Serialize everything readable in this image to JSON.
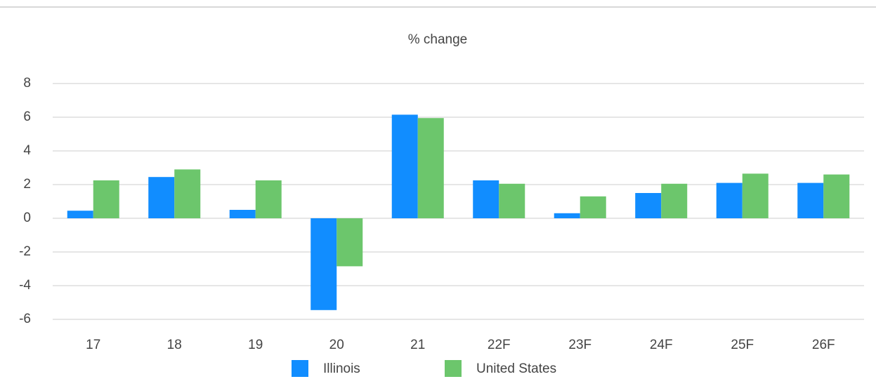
{
  "chart_data": {
    "type": "bar",
    "title": "% change",
    "categories": [
      "17",
      "18",
      "19",
      "20",
      "21",
      "22F",
      "23F",
      "24F",
      "25F",
      "26F"
    ],
    "series": [
      {
        "name": "Illinois",
        "color": "#118dff",
        "values": [
          0.45,
          2.45,
          0.5,
          -5.45,
          6.15,
          2.25,
          0.3,
          1.5,
          2.1,
          2.1
        ]
      },
      {
        "name": "United States",
        "color": "#6cc66c",
        "values": [
          2.25,
          2.9,
          2.25,
          -2.85,
          5.95,
          2.05,
          1.3,
          2.05,
          2.65,
          2.6
        ]
      }
    ],
    "ylim": [
      -6,
      8
    ],
    "yticks": [
      -6,
      -4,
      -2,
      0,
      2,
      4,
      6,
      8
    ],
    "grid": true,
    "legend": "bottom"
  }
}
